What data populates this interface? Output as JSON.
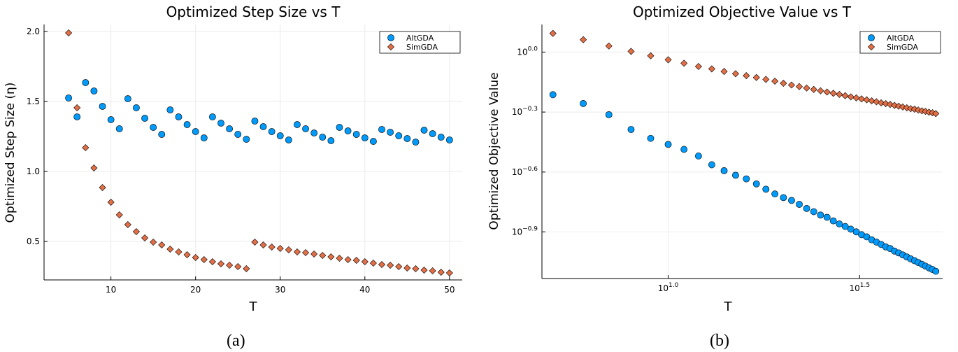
{
  "colors": {
    "AltGDA": "#009AFA",
    "SimGDA": "#E26F46",
    "grid": "#ebebeb",
    "axis": "#000000"
  },
  "chart_data": [
    {
      "type": "scatter",
      "title": "Optimized Step Size vs T",
      "xlabel": "T",
      "ylabel": "Optimized Step Size (η)",
      "xlim": [
        2.1,
        51.5
      ],
      "ylim": [
        0.225,
        2.05
      ],
      "xticks": [
        10,
        20,
        30,
        40,
        50
      ],
      "xtick_labels": [
        "10",
        "20",
        "30",
        "40",
        "50"
      ],
      "yticks": [
        0.5,
        1.0,
        1.5,
        2.0
      ],
      "ytick_labels": [
        "0.5",
        "1.0",
        "1.5",
        "2.0"
      ],
      "grid": true,
      "legend": "top-right",
      "x": [
        5,
        6,
        7,
        8,
        9,
        10,
        11,
        12,
        13,
        14,
        15,
        16,
        17,
        18,
        19,
        20,
        21,
        22,
        23,
        24,
        25,
        26,
        27,
        28,
        29,
        30,
        31,
        32,
        33,
        34,
        35,
        36,
        37,
        38,
        39,
        40,
        41,
        42,
        43,
        44,
        45,
        46,
        47,
        48,
        49,
        50
      ],
      "series": [
        {
          "name": "AltGDA",
          "marker": "circle",
          "values": [
            1.525,
            1.39,
            1.635,
            1.575,
            1.465,
            1.37,
            1.305,
            1.52,
            1.455,
            1.38,
            1.315,
            1.265,
            1.44,
            1.39,
            1.335,
            1.285,
            1.24,
            1.39,
            1.345,
            1.305,
            1.265,
            1.23,
            1.36,
            1.32,
            1.285,
            1.255,
            1.225,
            1.335,
            1.305,
            1.275,
            1.245,
            1.22,
            1.315,
            1.29,
            1.265,
            1.24,
            1.215,
            1.3,
            1.28,
            1.255,
            1.235,
            1.21,
            1.295,
            1.27,
            1.245,
            1.225
          ]
        },
        {
          "name": "SimGDA",
          "marker": "diamond",
          "values": [
            1.99,
            1.455,
            1.17,
            1.025,
            0.885,
            0.78,
            0.69,
            0.62,
            0.57,
            0.525,
            0.495,
            0.475,
            0.445,
            0.425,
            0.405,
            0.385,
            0.37,
            0.355,
            0.34,
            0.33,
            0.32,
            0.305,
            0.495,
            0.475,
            0.46,
            0.45,
            0.44,
            0.425,
            0.42,
            0.41,
            0.4,
            0.39,
            0.38,
            0.37,
            0.365,
            0.355,
            0.345,
            0.335,
            0.33,
            0.32,
            0.31,
            0.305,
            0.295,
            0.29,
            0.28,
            0.275
          ]
        }
      ]
    },
    {
      "type": "scatter",
      "title": "Optimized Objective Value vs T",
      "xlabel": "T",
      "ylabel": "Optimized Objective Value",
      "xscale": "log10",
      "yscale": "log10",
      "xlim": [
        4.68,
        52.1
      ],
      "ylim": [
        0.0736,
        1.374
      ],
      "xticks": [
        {
          "base": "10",
          "exp": "1.0",
          "value": 10
        },
        {
          "base": "10",
          "exp": "1.5",
          "value": 31.62
        }
      ],
      "yticks": [
        {
          "base": "10",
          "exp": "0.0",
          "value": 1.0
        },
        {
          "base": "10",
          "exp": "−0.3",
          "value": 0.501
        },
        {
          "base": "10",
          "exp": "−0.6",
          "value": 0.251
        },
        {
          "base": "10",
          "exp": "−0.9",
          "value": 0.126
        }
      ],
      "grid": true,
      "legend": "top-right",
      "x": [
        5,
        6,
        7,
        8,
        9,
        10,
        11,
        12,
        13,
        14,
        15,
        16,
        17,
        18,
        19,
        20,
        21,
        22,
        23,
        24,
        25,
        26,
        27,
        28,
        29,
        30,
        31,
        32,
        33,
        34,
        35,
        36,
        37,
        38,
        39,
        40,
        41,
        42,
        43,
        44,
        45,
        46,
        47,
        48,
        49,
        50
      ],
      "series": [
        {
          "name": "AltGDA",
          "marker": "circle",
          "values": [
            0.612,
            0.553,
            0.486,
            0.41,
            0.37,
            0.345,
            0.326,
            0.302,
            0.273,
            0.255,
            0.242,
            0.232,
            0.219,
            0.206,
            0.195,
            0.187,
            0.181,
            0.173,
            0.165,
            0.159,
            0.153,
            0.149,
            0.143,
            0.138,
            0.134,
            0.13,
            0.126,
            0.122,
            0.119,
            0.115,
            0.112,
            0.109,
            0.106,
            0.104,
            0.101,
            0.0989,
            0.0966,
            0.0944,
            0.0923,
            0.0904,
            0.0885,
            0.0867,
            0.0849,
            0.0832,
            0.0817,
            0.08
          ]
        },
        {
          "name": "SimGDA",
          "marker": "diamond",
          "values": [
            1.24,
            1.153,
            1.072,
            1.008,
            0.958,
            0.915,
            0.879,
            0.847,
            0.824,
            0.8,
            0.779,
            0.762,
            0.746,
            0.73,
            0.715,
            0.698,
            0.684,
            0.672,
            0.661,
            0.65,
            0.64,
            0.631,
            0.622,
            0.614,
            0.605,
            0.597,
            0.59,
            0.583,
            0.577,
            0.57,
            0.564,
            0.557,
            0.552,
            0.547,
            0.541,
            0.536,
            0.531,
            0.526,
            0.521,
            0.518,
            0.513,
            0.508,
            0.505,
            0.5,
            0.497,
            0.492
          ]
        }
      ]
    }
  ],
  "captions": [
    "(a)",
    "(b)"
  ]
}
